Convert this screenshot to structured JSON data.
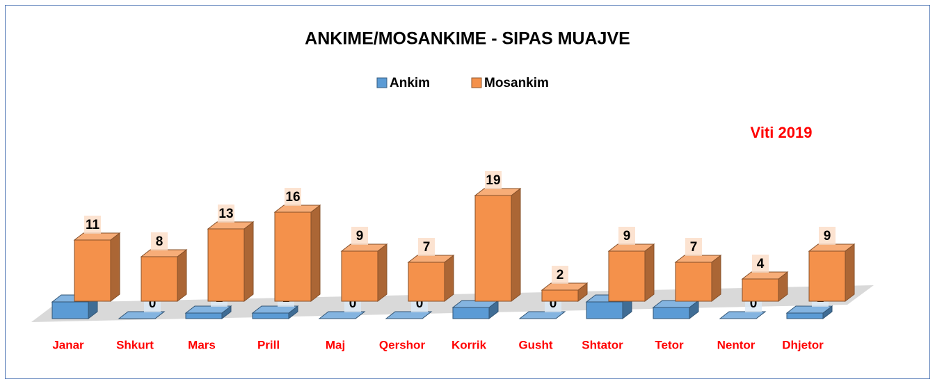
{
  "chart_data": {
    "type": "bar3d",
    "title": "ANKIME/MOSANKIME - SIPAS MUAJVE",
    "annotation": "Viti 2019",
    "categories": [
      "Janar",
      "Shkurt",
      "Mars",
      "Prill",
      "Maj",
      "Qershor",
      "Korrik",
      "Gusht",
      "Shtator",
      "Tetor",
      "Nentor",
      "Dhjetor"
    ],
    "series": [
      {
        "name": "Ankim",
        "color": "#5b9bd5",
        "values": [
          3,
          0,
          1,
          1,
          0,
          0,
          2,
          0,
          3,
          2,
          0,
          1
        ]
      },
      {
        "name": "Mosankim",
        "color": "#f4914b",
        "values": [
          11,
          8,
          13,
          16,
          9,
          7,
          19,
          2,
          9,
          7,
          4,
          9
        ]
      }
    ],
    "legend": "top"
  }
}
